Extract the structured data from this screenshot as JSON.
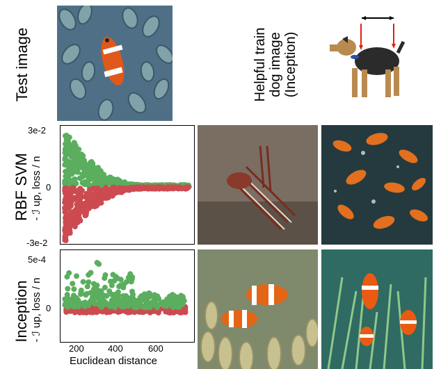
{
  "row_labels": {
    "test": "Test image",
    "rbf": "RBF SVM",
    "inception": "Inception"
  },
  "dog_caption": [
    "Helpful train",
    "dog image",
    "(Inception)"
  ],
  "ylabel": "- ℐ up, loss / n",
  "colors": {
    "green": "#5aae5e",
    "red": "#cc4b50"
  },
  "chart_data": [
    {
      "type": "scatter",
      "panel": "RBF SVM",
      "ylabel": "- ℐ up, loss / n",
      "yticks": [
        "3e-2",
        "0",
        "-3e-2"
      ],
      "ylim": [
        -0.03,
        0.03
      ],
      "xlim": [
        140,
        760
      ],
      "series": [
        {
          "color": "green",
          "summary": "positive-influence train points, spread up to ~3e-2 near x≈200-300, collapsing to 0 by x≈500"
        },
        {
          "color": "red",
          "summary": "negative-influence train points, spread down to ~-2.5e-2 near x≈200-300, collapsing to 0 by x≈500"
        }
      ]
    },
    {
      "type": "scatter",
      "panel": "Inception",
      "xlabel": "Euclidean distance",
      "ylabel": "- ℐ up, loss / n",
      "yticks": [
        "5e-4",
        "0"
      ],
      "xticks": [
        200,
        400,
        600
      ],
      "ylim": [
        -0.0002,
        0.0006
      ],
      "xlim": [
        140,
        760
      ],
      "series": [
        {
          "color": "green",
          "summary": "positive points up to ~4.5e-4 around x≈300"
        },
        {
          "color": "red",
          "summary": "negative points close to 0 across x 160-720"
        }
      ]
    }
  ],
  "images": {
    "test_image": "clownfish test image",
    "dog_image": "airedale dog train image",
    "rbf_1": "lionfish train image",
    "rbf_2": "goldfish train image",
    "inc_1": "clownfish train image",
    "inc_2": "clownfish train image"
  }
}
